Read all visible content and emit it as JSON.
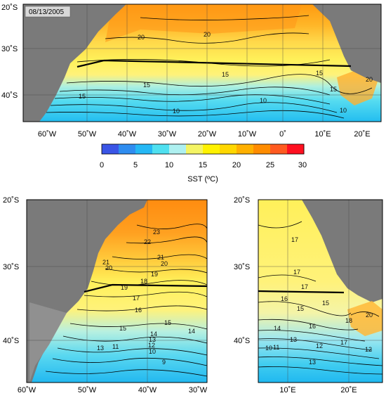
{
  "date_label": "08/13/2005",
  "colorbar": {
    "title": "SST (ºC)",
    "ticks": [
      "0",
      "5",
      "10",
      "15",
      "20",
      "25",
      "30"
    ],
    "colors": [
      "#3a55e6",
      "#2f8df0",
      "#25b8f5",
      "#4fe0f0",
      "#aef0f0",
      "#f4f464",
      "#fff200",
      "#ffd700",
      "#ffb000",
      "#ff8c00",
      "#ff5a20",
      "#ff1020"
    ]
  },
  "colors": {
    "land": "#777777",
    "land_fill": "#8a8a8a",
    "section_line": "#000000"
  },
  "map_top": {
    "x_ticks": [
      "60˚W",
      "50˚W",
      "40˚W",
      "30˚W",
      "20˚W",
      "10˚W",
      "0˚",
      "10˚E",
      "20˚E"
    ],
    "y_ticks": [
      "20˚S",
      "30˚S",
      "40˚S"
    ],
    "contour_labels": [
      "20",
      "20",
      "15",
      "15",
      "15",
      "15",
      "10",
      "10",
      "10",
      "20",
      "15"
    ]
  },
  "map_left": {
    "x_ticks": [
      "60˚W",
      "50˚W",
      "40˚W",
      "30˚W"
    ],
    "y_ticks": [
      "20˚S",
      "30˚S",
      "40˚S"
    ],
    "contour_labels": [
      "23",
      "22",
      "21",
      "21",
      "20",
      "20",
      "19",
      "19",
      "18",
      "17",
      "16",
      "15",
      "15",
      "14",
      "13",
      "12",
      "11",
      "10",
      "9",
      "14",
      "13"
    ]
  },
  "map_right": {
    "x_ticks": [
      "10˚E",
      "20˚E"
    ],
    "y_ticks": [
      "20˚S",
      "30˚S",
      "40˚S"
    ],
    "contour_labels": [
      "17",
      "17",
      "17",
      "16",
      "16",
      "15",
      "15",
      "14",
      "13",
      "12",
      "11",
      "10",
      "20",
      "18",
      "17",
      "13",
      "12"
    ]
  }
}
